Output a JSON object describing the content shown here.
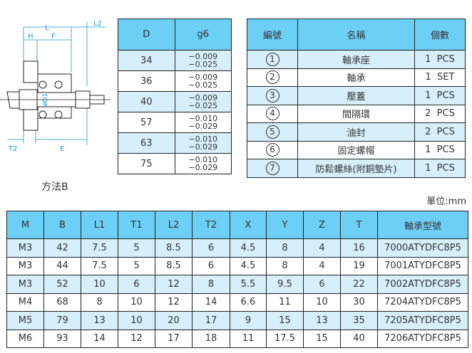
{
  "diagram": {
    "labels": {
      "L": "L",
      "L2": "L2",
      "H": "H",
      "F": "F",
      "D1": "øD1",
      "T2": "T2",
      "E": "E"
    },
    "caption": "方法B",
    "accent": "#1a9ad6"
  },
  "tolerance_table": {
    "headers": [
      "D",
      "g6"
    ],
    "rows": [
      {
        "d": "34",
        "upper": "−0.009",
        "lower": "−0.025"
      },
      {
        "d": "36",
        "upper": "−0.009",
        "lower": "−0.025"
      },
      {
        "d": "40",
        "upper": "−0.009",
        "lower": "−0.025"
      },
      {
        "d": "57",
        "upper": "−0.010",
        "lower": "−0.029"
      },
      {
        "d": "63",
        "upper": "−0.010",
        "lower": "−0.029"
      },
      {
        "d": "75",
        "upper": "−0.010",
        "lower": "−0.029"
      }
    ]
  },
  "parts_table": {
    "headers": [
      "編號",
      "名稱",
      "個數"
    ],
    "rows": [
      {
        "no": "1",
        "name": "軸承座",
        "qty": "1  PCS"
      },
      {
        "no": "2",
        "name": "軸承",
        "qty": "1  SET"
      },
      {
        "no": "3",
        "name": "壓蓋",
        "qty": "1  PCS"
      },
      {
        "no": "4",
        "name": "間隔環",
        "qty": "2  PCS"
      },
      {
        "no": "5",
        "name": "油封",
        "qty": "2  PCS"
      },
      {
        "no": "6",
        "name": "固定螺帽",
        "qty": "1  PCS"
      },
      {
        "no": "7",
        "name": "防鬆螺絲(附銅墊片)",
        "qty": "1  PCS"
      }
    ]
  },
  "unit": "單位:mm",
  "dim_table": {
    "headers": [
      "M",
      "B",
      "L1",
      "T1",
      "L2",
      "T2",
      "X",
      "Y",
      "Z",
      "T",
      "軸承型號"
    ],
    "rows": [
      [
        "M3",
        "42",
        "7.5",
        "5",
        "8.5",
        "6",
        "4.5",
        "8",
        "4",
        "16",
        "7000ATYDFC8P5"
      ],
      [
        "M3",
        "44",
        "7.5",
        "5",
        "8.5",
        "6",
        "4.5",
        "8",
        "4",
        "19",
        "7001ATYDFC8P5"
      ],
      [
        "M3",
        "52",
        "10",
        "6",
        "12",
        "8",
        "5.5",
        "9.5",
        "6",
        "22",
        "7002ATYDFC8P5"
      ],
      [
        "M4",
        "68",
        "8",
        "10",
        "12",
        "14",
        "6.6",
        "11",
        "10",
        "30",
        "7204ATYDFC8P5"
      ],
      [
        "M5",
        "79",
        "13",
        "10",
        "20",
        "17",
        "9",
        "15",
        "13",
        "35",
        "7205ATYDFC8P5"
      ],
      [
        "M6",
        "93",
        "14",
        "12",
        "17",
        "18",
        "11",
        "17.5",
        "15",
        "40",
        "7206ATYDFC8P5"
      ]
    ]
  },
  "colors": {
    "header": "#6ccff6",
    "alt_row": "#d6effb",
    "dimension_line": "#1a9ad6"
  }
}
